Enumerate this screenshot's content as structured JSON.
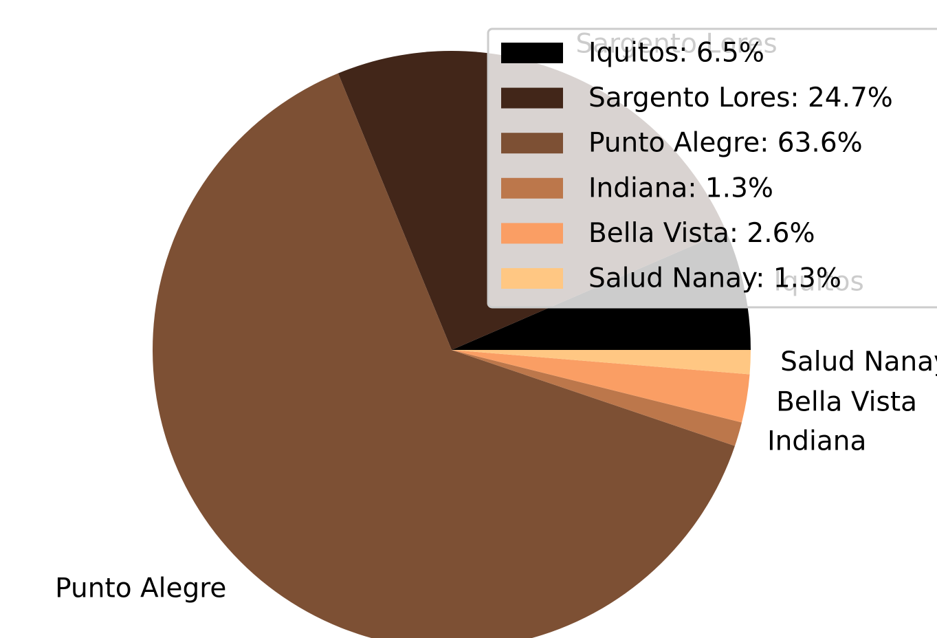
{
  "chart_data": {
    "type": "pie",
    "categories": [
      "Iquitos",
      "Sargento Lores",
      "Punto Alegre",
      "Indiana",
      "Bella Vista",
      "Salud Nanay"
    ],
    "values": [
      6.5,
      24.7,
      63.6,
      1.3,
      2.6,
      1.3
    ],
    "colors": [
      "#000000",
      "#422619",
      "#7d5034",
      "#bc774b",
      "#fa9e64",
      "#ffc783"
    ],
    "legend_labels": [
      "Iquitos: 6.5%",
      "Sargento Lores: 24.7%",
      "Punto Alegre: 63.6%",
      "Indiana: 1.3%",
      "Bella Vista: 2.6%",
      "Salud Nanay: 1.3%"
    ],
    "legend": "upper right"
  }
}
